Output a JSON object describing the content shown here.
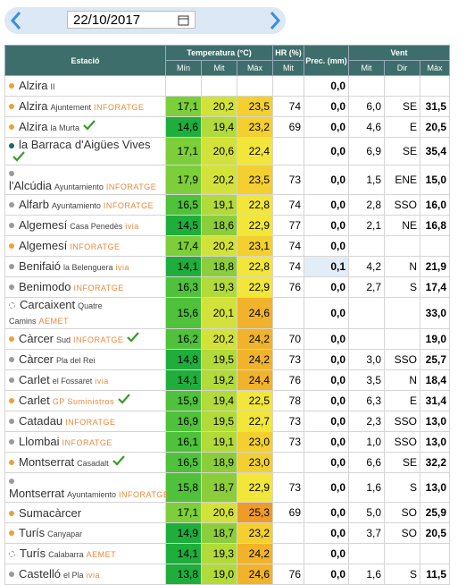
{
  "date": "22/10/2017",
  "table": {
    "headers": [
      "Estació",
      "Temperatura (°C)",
      "HR (%)",
      "Prec. (mm)",
      "Vent"
    ],
    "subheaders": [
      "Mín",
      "Mit",
      "Màx",
      "Mit",
      "Mit",
      "Dir",
      "Màx"
    ],
    "rows": [
      {
        "name": "Alzira",
        "sub": "II",
        "dot": "#e8a33b",
        "check": false,
        "cells": [
          null,
          null,
          null,
          null,
          "0,0",
          null,
          null,
          null
        ]
      },
      {
        "name": "Alzira",
        "sub": "Ajuntement",
        "brand": "INFORATGE",
        "dot": "#e8a33b",
        "check": false,
        "cells": [
          "17,1",
          "20,2",
          "23,5",
          "74",
          "0,0",
          "6,0",
          "SE",
          "31,5"
        ]
      },
      {
        "name": "Alzira",
        "sub": "la Murta",
        "dot": "#e8a33b",
        "check": true,
        "cells": [
          "14,6",
          "19,4",
          "23,2",
          "69",
          "0,0",
          "4,6",
          "E",
          "20,5"
        ]
      },
      {
        "name": "la Barraca d'Aigües Vives",
        "dot": "#1d6b5e",
        "check": true,
        "cells": [
          "17,1",
          "20,6",
          "22,4",
          null,
          "0,0",
          "6,9",
          "SE",
          "35,4"
        ]
      },
      {
        "name": "l'Alcúdia",
        "sub": "Ayuntamiento",
        "brand": "INFORATGE",
        "dot": "#9a9a9a",
        "check": false,
        "cells": [
          "17,9",
          "20,2",
          "23,5",
          "73",
          "0,0",
          "1,5",
          "ENE",
          "15,0"
        ]
      },
      {
        "name": "Alfarb",
        "sub": "Ayuntamiento",
        "brand": "INFORATGE",
        "dot": "#9a9a9a",
        "check": false,
        "cells": [
          "16,5",
          "19,1",
          "22,8",
          "74",
          "0,0",
          "2,8",
          "SSO",
          "16,0"
        ]
      },
      {
        "name": "Algemesí",
        "sub": "Casa Penedès",
        "brand": "ivia",
        "dot": "#9a9a9a",
        "check": false,
        "cells": [
          "14,5",
          "18,6",
          "22,9",
          "77",
          "0,0",
          "2,1",
          "NE",
          "16,8"
        ]
      },
      {
        "name": "Algemesí",
        "brand": "INFORATGE",
        "dot": "#e8a33b",
        "check": false,
        "cells": [
          "17,4",
          "20,2",
          "23,1",
          "74",
          "0,0",
          null,
          null,
          null
        ]
      },
      {
        "name": "Benifaió",
        "sub": "la Belenguera",
        "brand": "ivia",
        "dot": "#9a9a9a",
        "check": false,
        "cells": [
          "14,1",
          "18,8",
          "22,8",
          "74",
          "0,1",
          "4,2",
          "N",
          "21,9"
        ]
      },
      {
        "name": "Benimodo",
        "brand": "INFORATGE",
        "dot": "#9a9a9a",
        "check": false,
        "cells": [
          "16,3",
          "19,3",
          "22,9",
          "76",
          "0,0",
          "2,7",
          "S",
          "17,4"
        ]
      },
      {
        "name": "Carcaixent",
        "sub": "Quatre Camins",
        "brand": "AEMET",
        "dot": "dashed",
        "check": false,
        "cells": [
          "15,6",
          "20,1",
          "24,6",
          null,
          "0,0",
          null,
          null,
          "33,0"
        ]
      },
      {
        "name": "Càrcer",
        "sub": "Sud",
        "brand": "INFORATGE",
        "dot": "#e8a33b",
        "check": true,
        "cells": [
          "16,2",
          "20,2",
          "24,2",
          "70",
          "0,0",
          null,
          null,
          "19,0"
        ]
      },
      {
        "name": "Càrcer",
        "sub": "Pla del Rei",
        "dot": "#9a9a9a",
        "check": false,
        "cells": [
          "14,8",
          "19,5",
          "24,2",
          "73",
          "0,0",
          "3,0",
          "SSO",
          "25,7"
        ]
      },
      {
        "name": "Carlet",
        "sub": "el Fossaret",
        "brand": "ivia",
        "dot": "#9a9a9a",
        "check": false,
        "cells": [
          "14,1",
          "19,2",
          "24,4",
          "76",
          "0,0",
          "3,5",
          "N",
          "18,4"
        ]
      },
      {
        "name": "Carlet",
        "brand": "GP Suministros",
        "dot": "#e8a33b",
        "check": true,
        "cells": [
          "15,9",
          "19,4",
          "22,5",
          "78",
          "0,0",
          "6,3",
          "E",
          "31,4"
        ]
      },
      {
        "name": "Catadau",
        "brand": "INFORATGE",
        "dot": "#9a9a9a",
        "check": false,
        "cells": [
          "16,9",
          "19,5",
          "22,7",
          "73",
          "0,0",
          "2,3",
          "SSO",
          "13,0"
        ]
      },
      {
        "name": "Llombai",
        "brand": "INFORATGE",
        "dot": "#9a9a9a",
        "check": false,
        "cells": [
          "16,1",
          "19,1",
          "23,0",
          "73",
          "0,0",
          "1,0",
          "SSO",
          "13,0"
        ]
      },
      {
        "name": "Montserrat",
        "sub": "Casadalt",
        "dot": "#e8a33b",
        "check": true,
        "cells": [
          "16,5",
          "18,9",
          "23,0",
          null,
          "0,0",
          "6,6",
          "SE",
          "32,2"
        ]
      },
      {
        "name": "Montserrat",
        "sub": "Ayuntamiento",
        "brand": "INFORATGE",
        "dot": "#9a9a9a",
        "check": false,
        "cells": [
          "15,8",
          "18,7",
          "22,9",
          "73",
          "0,0",
          "1,6",
          "S",
          "13,0"
        ]
      },
      {
        "name": "Sumacàrcer",
        "dot": "#e8a33b",
        "check": false,
        "cells": [
          "17,1",
          "20,6",
          "25,3",
          "69",
          "0,0",
          "5,0",
          "SO",
          "25,9"
        ]
      },
      {
        "name": "Turís",
        "sub": "Canyapar",
        "dot": "#e8a33b",
        "check": false,
        "cells": [
          "14,9",
          "18,7",
          "23,2",
          null,
          "0,0",
          "3,7",
          "SO",
          "20,5"
        ]
      },
      {
        "name": "Turís",
        "sub": "Calabarra",
        "brand": "AEMET",
        "dot": "dashed",
        "check": false,
        "cells": [
          "14,1",
          "19,3",
          "24,2",
          null,
          "0,0",
          null,
          null,
          null
        ]
      },
      {
        "name": "Castelló",
        "sub": "el Pla",
        "brand": "ivia",
        "dot": "#9a9a9a",
        "check": false,
        "cells": [
          "13,8",
          "19,0",
          "24,6",
          "76",
          "0,0",
          "1,6",
          "S",
          "11,5"
        ]
      }
    ]
  }
}
